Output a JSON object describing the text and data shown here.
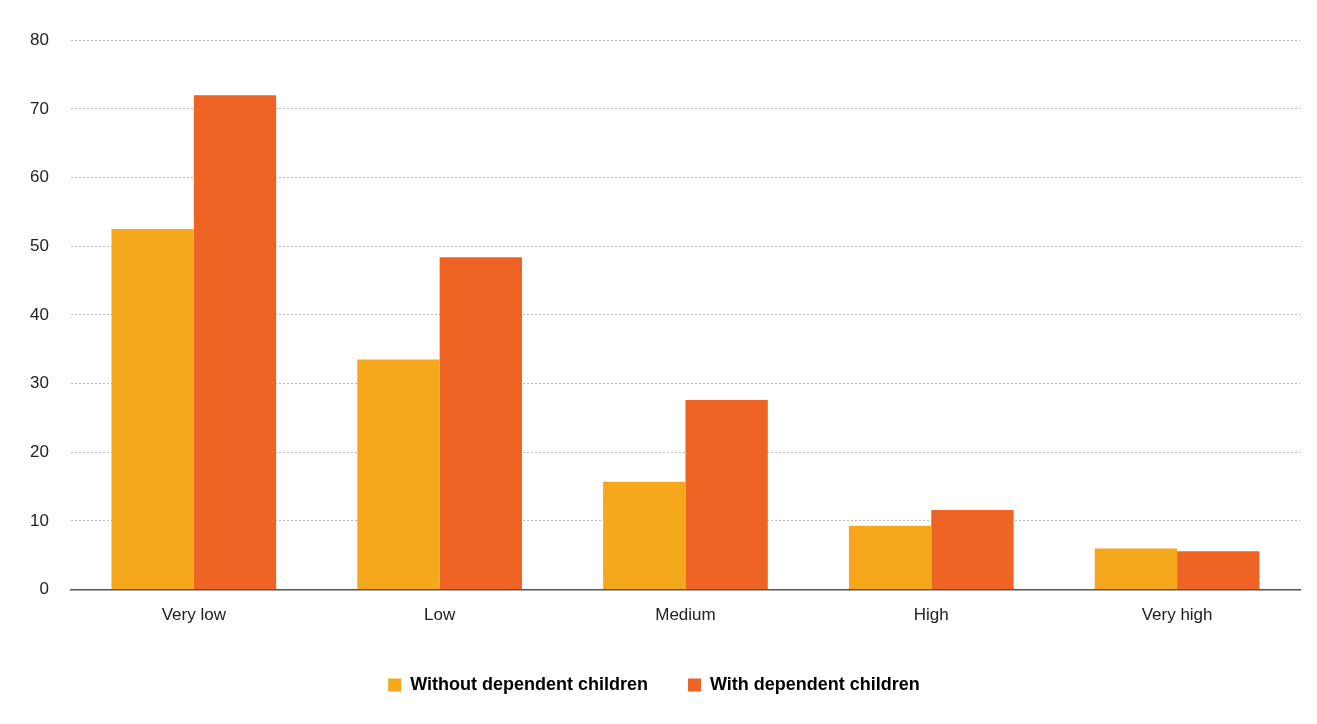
{
  "chart_data": {
    "type": "bar",
    "categories": [
      "Very low",
      "Low",
      "Medium",
      "High",
      "Very high"
    ],
    "series": [
      {
        "name": "Without dependent children",
        "color": "#f6a81d",
        "values": [
          52.5,
          33.5,
          15.7,
          9.3,
          6.0
        ]
      },
      {
        "name": "With dependent children",
        "color": "#ee6424",
        "values": [
          72.0,
          48.4,
          27.6,
          11.6,
          5.6
        ]
      }
    ],
    "ylim": [
      0,
      80
    ],
    "yticks": [
      0,
      10,
      20,
      30,
      40,
      50,
      60,
      70,
      80
    ],
    "grid": "y",
    "legend": "bottom"
  }
}
